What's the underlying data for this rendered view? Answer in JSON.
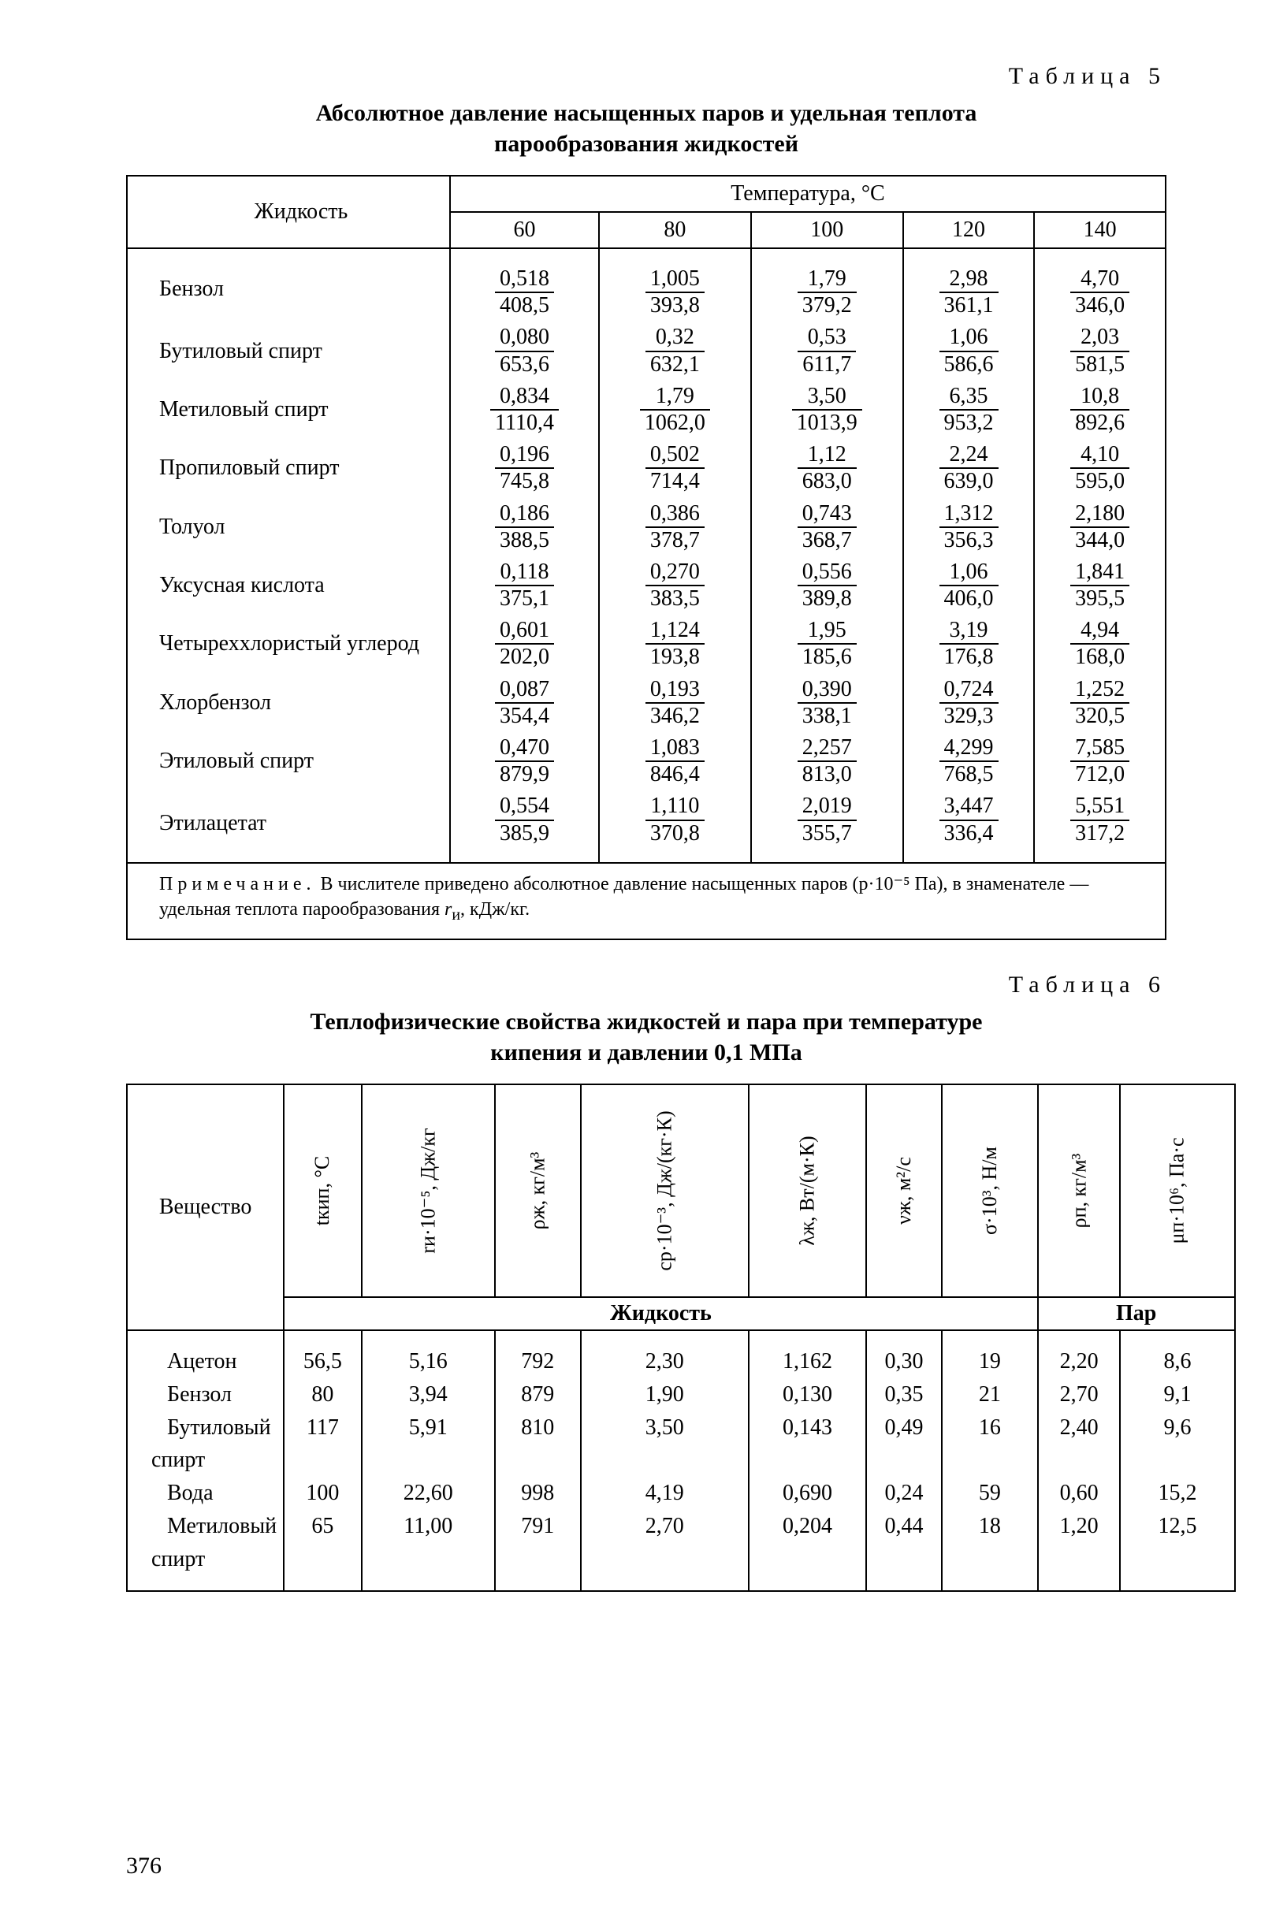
{
  "table5": {
    "label": "Таблица 5",
    "title_l1": "Абсолютное давление насыщенных паров и удельная теплота",
    "title_l2": "парообразования жидкостей",
    "liquid_header": "Жидкость",
    "temp_header": "Температура, °C",
    "temps": [
      "60",
      "80",
      "100",
      "120",
      "140"
    ],
    "rows": [
      {
        "name": "Бензол",
        "cells": [
          {
            "n": "0,518",
            "d": "408,5"
          },
          {
            "n": "1,005",
            "d": "393,8"
          },
          {
            "n": "1,79",
            "d": "379,2"
          },
          {
            "n": "2,98",
            "d": "361,1"
          },
          {
            "n": "4,70",
            "d": "346,0"
          }
        ]
      },
      {
        "name": "Бутиловый спирт",
        "cells": [
          {
            "n": "0,080",
            "d": "653,6"
          },
          {
            "n": "0,32",
            "d": "632,1"
          },
          {
            "n": "0,53",
            "d": "611,7"
          },
          {
            "n": "1,06",
            "d": "586,6"
          },
          {
            "n": "2,03",
            "d": "581,5"
          }
        ]
      },
      {
        "name": "Метиловый спирт",
        "cells": [
          {
            "n": "0,834",
            "d": "1110,4"
          },
          {
            "n": "1,79",
            "d": "1062,0"
          },
          {
            "n": "3,50",
            "d": "1013,9"
          },
          {
            "n": "6,35",
            "d": "953,2"
          },
          {
            "n": "10,8",
            "d": "892,6"
          }
        ]
      },
      {
        "name": "Пропиловый спирт",
        "cells": [
          {
            "n": "0,196",
            "d": "745,8"
          },
          {
            "n": "0,502",
            "d": "714,4"
          },
          {
            "n": "1,12",
            "d": "683,0"
          },
          {
            "n": "2,24",
            "d": "639,0"
          },
          {
            "n": "4,10",
            "d": "595,0"
          }
        ]
      },
      {
        "name": "Толуол",
        "cells": [
          {
            "n": "0,186",
            "d": "388,5"
          },
          {
            "n": "0,386",
            "d": "378,7"
          },
          {
            "n": "0,743",
            "d": "368,7"
          },
          {
            "n": "1,312",
            "d": "356,3"
          },
          {
            "n": "2,180",
            "d": "344,0"
          }
        ]
      },
      {
        "name": "Уксусная кислота",
        "cells": [
          {
            "n": "0,118",
            "d": "375,1"
          },
          {
            "n": "0,270",
            "d": "383,5"
          },
          {
            "n": "0,556",
            "d": "389,8"
          },
          {
            "n": "1,06",
            "d": "406,0"
          },
          {
            "n": "1,841",
            "d": "395,5"
          }
        ]
      },
      {
        "name": "Четыреххлористый уг­лерод",
        "cells": [
          {
            "n": "0,601",
            "d": "202,0"
          },
          {
            "n": "1,124",
            "d": "193,8"
          },
          {
            "n": "1,95",
            "d": "185,6"
          },
          {
            "n": "3,19",
            "d": "176,8"
          },
          {
            "n": "4,94",
            "d": "168,0"
          }
        ]
      },
      {
        "name": "Хлорбензол",
        "cells": [
          {
            "n": "0,087",
            "d": "354,4"
          },
          {
            "n": "0,193",
            "d": "346,2"
          },
          {
            "n": "0,390",
            "d": "338,1"
          },
          {
            "n": "0,724",
            "d": "329,3"
          },
          {
            "n": "1,252",
            "d": "320,5"
          }
        ]
      },
      {
        "name": "Этиловый спирт",
        "cells": [
          {
            "n": "0,470",
            "d": "879,9"
          },
          {
            "n": "1,083",
            "d": "846,4"
          },
          {
            "n": "2,257",
            "d": "813,0"
          },
          {
            "n": "4,299",
            "d": "768,5"
          },
          {
            "n": "7,585",
            "d": "712,0"
          }
        ]
      },
      {
        "name": "Этилацетат",
        "cells": [
          {
            "n": "0,554",
            "d": "385,9"
          },
          {
            "n": "1,110",
            "d": "370,8"
          },
          {
            "n": "2,019",
            "d": "355,7"
          },
          {
            "n": "3,447",
            "d": "336,4"
          },
          {
            "n": "5,551",
            "d": "317,2"
          }
        ]
      }
    ],
    "note_label": "Примечание.",
    "note_body1": "В числителе приведено абсолютное давление насыщенных паров (p·10⁻⁵ Па), в знаменателе — удельная теплота парообразования ",
    "note_sym": "r",
    "note_sub": "и",
    "note_body2": ", кДж/кг."
  },
  "table6": {
    "label": "Таблица 6",
    "title_l1": "Теплофизические свойства жидкостей и пара при температуре",
    "title_l2": "кипения и давлении 0,1 МПа",
    "substance_header": "Вещество",
    "group_liquid": "Жидкость",
    "group_vapor": "Пар",
    "col_headers": [
      "tкип, °C",
      "rи·10⁻⁵, Дж/кг",
      "ρж, кг/м³",
      "cр·10⁻³, Дж/(кг·К)",
      "λж, Вт/(м·К)",
      "νж, м²/с",
      "σ·10³, Н/м",
      "ρп, кг/м³",
      "μп·10⁶, Па·с"
    ],
    "names": [
      "Ацетон",
      "Бензол",
      "Бутиловый спирт",
      "Вода",
      "Метиловый спирт"
    ],
    "cols": [
      [
        "56,5",
        "80",
        "117",
        "",
        "100",
        "65",
        ""
      ],
      [
        "5,16",
        "3,94",
        "5,91",
        "",
        "22,60",
        "11,00",
        ""
      ],
      [
        "792",
        "879",
        "810",
        "",
        "998",
        "791",
        ""
      ],
      [
        "2,30",
        "1,90",
        "3,50",
        "",
        "4,19",
        "2,70",
        ""
      ],
      [
        "1,162",
        "0,130",
        "0,143",
        "",
        "0,690",
        "0,204",
        ""
      ],
      [
        "0,30",
        "0,35",
        "0,49",
        "",
        "0,24",
        "0,44",
        ""
      ],
      [
        "19",
        "21",
        "16",
        "",
        "59",
        "18",
        ""
      ],
      [
        "2,20",
        "2,70",
        "2,40",
        "",
        "0,60",
        "1,20",
        ""
      ],
      [
        "8,6",
        "9,1",
        "9,6",
        "",
        "15,2",
        "12,5",
        ""
      ]
    ]
  },
  "page_number": "376"
}
